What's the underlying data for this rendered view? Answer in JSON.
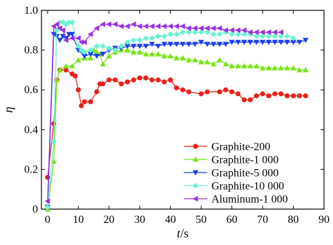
{
  "chart_data": {
    "type": "line",
    "xlabel_var": "t",
    "xlabel_unit": "/s",
    "ylabel": "η",
    "xlim": [
      -2,
      90
    ],
    "ylim": [
      0,
      1.0
    ],
    "x_ticks": [
      "0",
      "10",
      "20",
      "30",
      "40",
      "50",
      "60",
      "70",
      "80",
      "90"
    ],
    "y_ticks": [
      "0",
      "0.2",
      "0.4",
      "0.6",
      "0.8",
      "1.0"
    ],
    "legend_position": "bottom-right",
    "series": [
      {
        "name": "Graphite-200",
        "color": "#e8211c",
        "marker": "circle",
        "x": [
          0,
          2,
          3,
          4,
          6,
          8,
          9,
          10,
          11,
          12,
          14,
          16,
          17,
          18,
          20,
          22,
          24,
          26,
          28,
          30,
          32,
          34,
          36,
          38,
          40,
          42,
          44,
          46,
          50,
          52,
          56,
          58,
          60,
          62,
          64,
          66,
          68,
          70,
          72,
          74,
          76,
          78,
          80,
          82,
          84
        ],
        "y": [
          0.16,
          0.43,
          0.65,
          0.7,
          0.7,
          0.68,
          0.67,
          0.6,
          0.52,
          0.54,
          0.54,
          0.59,
          0.63,
          0.63,
          0.65,
          0.65,
          0.63,
          0.64,
          0.65,
          0.66,
          0.66,
          0.65,
          0.65,
          0.64,
          0.65,
          0.61,
          0.6,
          0.59,
          0.58,
          0.59,
          0.59,
          0.6,
          0.59,
          0.58,
          0.55,
          0.55,
          0.57,
          0.58,
          0.57,
          0.58,
          0.58,
          0.57,
          0.57,
          0.57,
          0.57
        ]
      },
      {
        "name": "Graphite-1 000",
        "color": "#7ae318",
        "marker": "triangle-up",
        "x": [
          0,
          2,
          3,
          4,
          6,
          8,
          10,
          12,
          14,
          15,
          16,
          17,
          18,
          20,
          22,
          24,
          26,
          28,
          30,
          32,
          34,
          36,
          38,
          40,
          42,
          44,
          46,
          48,
          50,
          52,
          54,
          56,
          58,
          60,
          62,
          64,
          66,
          68,
          70,
          72,
          74,
          76,
          78,
          80,
          82,
          84
        ],
        "y": [
          0.0,
          0.24,
          0.65,
          0.7,
          0.72,
          0.72,
          0.75,
          0.76,
          0.76,
          0.8,
          0.79,
          0.78,
          0.73,
          0.77,
          0.79,
          0.8,
          0.8,
          0.79,
          0.79,
          0.78,
          0.78,
          0.78,
          0.77,
          0.77,
          0.76,
          0.76,
          0.75,
          0.75,
          0.74,
          0.74,
          0.73,
          0.75,
          0.73,
          0.72,
          0.72,
          0.72,
          0.72,
          0.72,
          0.71,
          0.71,
          0.71,
          0.71,
          0.71,
          0.71,
          0.7,
          0.7
        ]
      },
      {
        "name": "Graphite-5 000",
        "color": "#1b3fe8",
        "marker": "triangle-down",
        "x": [
          0,
          2,
          3,
          4,
          5,
          6,
          7,
          8,
          10,
          12,
          14,
          16,
          18,
          20,
          22,
          24,
          26,
          28,
          30,
          32,
          34,
          36,
          38,
          40,
          42,
          44,
          46,
          48,
          50,
          52,
          54,
          56,
          58,
          60,
          62,
          64,
          66,
          68,
          70,
          72,
          74,
          76,
          78,
          80,
          82,
          84
        ],
        "y": [
          0.01,
          0.88,
          0.87,
          0.85,
          0.87,
          0.86,
          0.88,
          0.88,
          0.8,
          0.77,
          0.78,
          0.77,
          0.78,
          0.8,
          0.81,
          0.81,
          0.82,
          0.82,
          0.82,
          0.82,
          0.83,
          0.82,
          0.83,
          0.83,
          0.83,
          0.83,
          0.83,
          0.83,
          0.84,
          0.83,
          0.83,
          0.83,
          0.83,
          0.84,
          0.84,
          0.84,
          0.84,
          0.84,
          0.84,
          0.84,
          0.84,
          0.84,
          0.84,
          0.84,
          0.84,
          0.85
        ]
      },
      {
        "name": "Graphite-10 000",
        "color": "#6cf2d6",
        "marker": "diamond",
        "x": [
          0,
          2,
          3,
          4,
          5,
          6,
          7,
          8,
          10,
          11,
          12,
          14,
          16,
          18,
          20,
          22,
          24,
          26,
          28,
          30,
          32,
          34,
          36,
          38,
          40,
          42,
          44,
          46,
          48,
          50,
          52,
          54,
          56,
          58,
          60,
          62,
          64,
          66,
          68,
          70,
          72,
          74,
          76,
          78,
          80
        ],
        "y": [
          0.01,
          0.34,
          0.9,
          0.94,
          0.94,
          0.93,
          0.94,
          0.94,
          0.82,
          0.8,
          0.79,
          0.8,
          0.82,
          0.82,
          0.81,
          0.8,
          0.82,
          0.84,
          0.85,
          0.85,
          0.86,
          0.86,
          0.87,
          0.87,
          0.88,
          0.88,
          0.89,
          0.89,
          0.89,
          0.89,
          0.89,
          0.88,
          0.88,
          0.89,
          0.88,
          0.88,
          0.88,
          0.88,
          0.87,
          0.87,
          0.87,
          0.87,
          0.87,
          0.87,
          0.86
        ]
      },
      {
        "name": "Aluminum-1 000",
        "color": "#9b30e0",
        "marker": "triangle-left",
        "x": [
          0,
          2,
          3,
          4,
          5,
          6,
          8,
          10,
          11,
          12,
          14,
          16,
          18,
          20,
          22,
          24,
          26,
          28,
          30,
          32,
          34,
          36,
          38,
          40,
          42,
          44,
          46,
          48,
          50,
          52,
          54,
          56,
          58,
          60,
          62,
          64,
          66,
          68,
          70,
          72,
          74,
          76
        ],
        "y": [
          0.04,
          0.92,
          0.93,
          0.91,
          0.9,
          0.85,
          0.86,
          0.86,
          0.84,
          0.84,
          0.88,
          0.91,
          0.93,
          0.93,
          0.93,
          0.92,
          0.92,
          0.93,
          0.92,
          0.92,
          0.92,
          0.92,
          0.92,
          0.92,
          0.92,
          0.92,
          0.91,
          0.91,
          0.91,
          0.91,
          0.91,
          0.91,
          0.9,
          0.9,
          0.9,
          0.9,
          0.89,
          0.89,
          0.89,
          0.89,
          0.89,
          0.89
        ]
      }
    ]
  }
}
